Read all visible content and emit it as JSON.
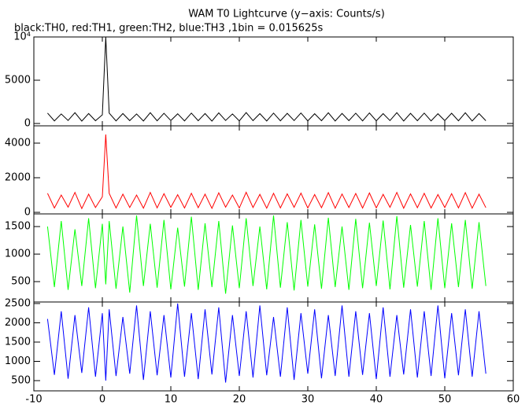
{
  "title": "WAM T0 Lightcurve (y−axis: Counts/s)",
  "subtitle": "black:TH0, red:TH1, green:TH2, blue:TH3 ,1bin = 0.015625s",
  "chart_data": [
    {
      "type": "line",
      "xlim": [
        -10,
        60
      ],
      "xticks": [
        -10,
        0,
        10,
        20,
        30,
        40,
        50,
        60
      ],
      "ylim": [
        -270,
        10000
      ],
      "yticks": [
        0,
        5000,
        {
          "value": 10000,
          "label": "10⁴"
        }
      ],
      "x": [
        -8,
        -7,
        -6,
        -5,
        -4,
        -3,
        -2,
        -1,
        0,
        0.5,
        1,
        2,
        3,
        4,
        5,
        6,
        7,
        8,
        9,
        10,
        11,
        12,
        13,
        14,
        15,
        16,
        17,
        18,
        19,
        20,
        21,
        22,
        23,
        24,
        25,
        26,
        27,
        28,
        29,
        30,
        31,
        32,
        33,
        34,
        35,
        36,
        37,
        38,
        39,
        40,
        41,
        42,
        43,
        44,
        45,
        46,
        47,
        48,
        49,
        50,
        51,
        52,
        53,
        54,
        55,
        56
      ],
      "series": [
        {
          "name": "TH0",
          "color": "#000000",
          "values": [
            1200,
            300,
            1100,
            350,
            1250,
            280,
            1150,
            320,
            1000,
            10000,
            1200,
            300,
            1150,
            330,
            1100,
            290,
            1250,
            310,
            1180,
            340,
            1120,
            300,
            1200,
            320,
            1150,
            280,
            1230,
            350,
            1100,
            300,
            1260,
            330,
            1140,
            290,
            1200,
            310,
            1170,
            340,
            1210,
            300,
            1130,
            320,
            1240,
            290,
            1160,
            330,
            1190,
            300,
            1220,
            310,
            1140,
            340,
            1250,
            290,
            1170,
            320,
            1200,
            300,
            1130,
            330,
            1180,
            310,
            1240,
            290,
            1150,
            320
          ]
        }
      ]
    },
    {
      "type": "line",
      "xlim": [
        -10,
        60
      ],
      "xticks": [
        -10,
        0,
        10,
        20,
        30,
        40,
        50,
        60
      ],
      "ylim": [
        -90,
        5000
      ],
      "yticks": [
        0,
        2000,
        4000
      ],
      "x": [
        -8,
        -7,
        -6,
        -5,
        -4,
        -3,
        -2,
        -1,
        0,
        0.5,
        1,
        2,
        3,
        4,
        5,
        6,
        7,
        8,
        9,
        10,
        11,
        12,
        13,
        14,
        15,
        16,
        17,
        18,
        19,
        20,
        21,
        22,
        23,
        24,
        25,
        26,
        27,
        28,
        29,
        30,
        31,
        32,
        33,
        34,
        35,
        36,
        37,
        38,
        39,
        40,
        41,
        42,
        43,
        44,
        45,
        46,
        47,
        48,
        49,
        50,
        51,
        52,
        53,
        54,
        55,
        56
      ],
      "series": [
        {
          "name": "TH1",
          "color": "#ff0000",
          "values": [
            1100,
            250,
            1000,
            300,
            1150,
            220,
            1050,
            280,
            900,
            4500,
            1100,
            250,
            1050,
            280,
            1000,
            240,
            1150,
            260,
            1080,
            290,
            1020,
            250,
            1100,
            270,
            1050,
            230,
            1130,
            300,
            1000,
            250,
            1160,
            280,
            1040,
            240,
            1100,
            260,
            1070,
            290,
            1110,
            250,
            1030,
            270,
            1140,
            240,
            1060,
            280,
            1090,
            250,
            1120,
            260,
            1040,
            290,
            1150,
            240,
            1070,
            270,
            1100,
            250,
            1030,
            280,
            1080,
            260,
            1140,
            240,
            1050,
            270
          ]
        }
      ]
    },
    {
      "type": "line",
      "xlim": [
        -10,
        60
      ],
      "xticks": [
        -10,
        0,
        10,
        20,
        30,
        40,
        50,
        60
      ],
      "ylim": [
        130,
        1730
      ],
      "yticks": [
        500,
        1000,
        1500
      ],
      "x": [
        -8,
        -7,
        -6,
        -5,
        -4,
        -3,
        -2,
        -1,
        0,
        0.5,
        1,
        2,
        3,
        4,
        5,
        6,
        7,
        8,
        9,
        10,
        11,
        12,
        13,
        14,
        15,
        16,
        17,
        18,
        19,
        20,
        21,
        22,
        23,
        24,
        25,
        26,
        27,
        28,
        29,
        30,
        31,
        32,
        33,
        34,
        35,
        36,
        37,
        38,
        39,
        40,
        41,
        42,
        43,
        44,
        45,
        46,
        47,
        48,
        49,
        50,
        51,
        52,
        53,
        54,
        55,
        56
      ],
      "series": [
        {
          "name": "TH2",
          "color": "#00ff00",
          "values": [
            1500,
            400,
            1600,
            350,
            1450,
            420,
            1650,
            380,
            1550,
            450,
            1600,
            370,
            1500,
            300,
            1700,
            420,
            1550,
            390,
            1620,
            360,
            1480,
            410,
            1680,
            350,
            1560,
            400,
            1600,
            280,
            1520,
            380,
            1650,
            420,
            1500,
            360,
            1700,
            390,
            1580,
            340,
            1620,
            410,
            1540,
            370,
            1660,
            400,
            1500,
            350,
            1640,
            380,
            1570,
            420,
            1610,
            360,
            1690,
            390,
            1530,
            410,
            1600,
            350,
            1650,
            380,
            1560,
            400,
            1620,
            370,
            1580,
            420
          ]
        }
      ]
    },
    {
      "type": "line",
      "xlim": [
        -10,
        60
      ],
      "xticks": [
        -10,
        0,
        10,
        20,
        30,
        40,
        50,
        60
      ],
      "ylim": [
        235,
        2540
      ],
      "yticks": [
        500,
        1000,
        1500,
        2000,
        2500
      ],
      "x": [
        -8,
        -7,
        -6,
        -5,
        -4,
        -3,
        -2,
        -1,
        0,
        0.5,
        1,
        2,
        3,
        4,
        5,
        6,
        7,
        8,
        9,
        10,
        11,
        12,
        13,
        14,
        15,
        16,
        17,
        18,
        19,
        20,
        21,
        22,
        23,
        24,
        25,
        26,
        27,
        28,
        29,
        30,
        31,
        32,
        33,
        34,
        35,
        36,
        37,
        38,
        39,
        40,
        41,
        42,
        43,
        44,
        45,
        46,
        47,
        48,
        49,
        50,
        51,
        52,
        53,
        54,
        55,
        56
      ],
      "series": [
        {
          "name": "TH3",
          "color": "#0000ff",
          "values": [
            2100,
            650,
            2300,
            550,
            2200,
            700,
            2400,
            600,
            2250,
            500,
            2350,
            620,
            2150,
            680,
            2450,
            520,
            2300,
            640,
            2200,
            580,
            2500,
            600,
            2250,
            540,
            2350,
            660,
            2400,
            450,
            2200,
            620,
            2300,
            580,
            2450,
            640,
            2150,
            600,
            2400,
            520,
            2250,
            680,
            2350,
            560,
            2200,
            620,
            2450,
            600,
            2300,
            650,
            2250,
            540,
            2400,
            600,
            2200,
            660,
            2350,
            580,
            2300,
            620,
            2450,
            560,
            2250,
            640,
            2350,
            600,
            2300,
            680
          ]
        }
      ]
    }
  ]
}
